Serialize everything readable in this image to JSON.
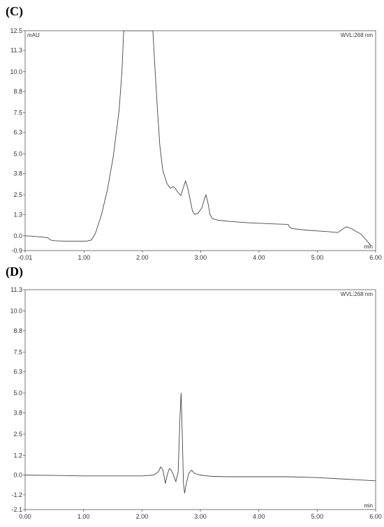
{
  "chart_data": [
    {
      "panel_label": "(C)",
      "type": "line",
      "ylabel": "mAU",
      "xlabel": "min",
      "annotation": "WVL:268 nm",
      "xlim": [
        -0.01,
        6.0
      ],
      "ylim": [
        -0.9,
        12.5
      ],
      "xticks": [
        "-0.01",
        "1.00",
        "2.00",
        "3.00",
        "4.00",
        "5.00",
        "6.00"
      ],
      "xtick_values": [
        -0.01,
        1.0,
        2.0,
        3.0,
        4.0,
        5.0,
        6.0
      ],
      "yticks": [
        "12.5",
        "11.3",
        "10.0",
        "8.8",
        "7.5",
        "6.3",
        "5.0",
        "3.8",
        "2.5",
        "1.3",
        "0.0",
        "-0.9"
      ],
      "ytick_values": [
        12.5,
        11.3,
        10.0,
        8.8,
        7.5,
        6.3,
        5.0,
        3.8,
        2.5,
        1.3,
        0.0,
        -0.9
      ],
      "series": [
        {
          "x": [
            -0.01,
            0.1,
            0.3,
            0.38,
            0.42,
            0.5,
            0.7,
            0.9,
            1.05,
            1.13,
            1.2,
            1.3,
            1.4,
            1.5,
            1.6,
            1.65,
            1.68,
            1.72,
            2.15,
            2.18,
            2.22,
            2.26,
            2.3,
            2.35,
            2.42,
            2.48,
            2.53,
            2.56,
            2.6,
            2.66,
            2.7,
            2.74,
            2.78,
            2.82,
            2.86,
            2.9,
            2.96,
            3.02,
            3.06,
            3.09,
            3.12,
            3.16,
            3.2,
            3.3,
            3.5,
            3.8,
            4.1,
            4.3,
            4.5,
            4.52,
            4.56,
            4.8,
            5.0,
            5.2,
            5.35,
            5.45,
            5.5,
            5.58,
            5.65,
            5.75,
            5.85,
            5.92
          ],
          "y": [
            0.0,
            -0.02,
            -0.08,
            -0.12,
            -0.25,
            -0.3,
            -0.33,
            -0.33,
            -0.32,
            -0.25,
            0.2,
            1.3,
            2.8,
            4.8,
            7.6,
            10.0,
            12.5,
            12.5,
            12.5,
            12.5,
            10.0,
            7.6,
            5.5,
            4.0,
            3.2,
            2.9,
            3.0,
            2.9,
            2.7,
            2.45,
            2.9,
            3.35,
            2.9,
            2.2,
            1.5,
            1.3,
            1.4,
            1.7,
            2.2,
            2.5,
            2.1,
            1.3,
            1.05,
            0.95,
            0.88,
            0.8,
            0.75,
            0.72,
            0.7,
            0.55,
            0.45,
            0.35,
            0.3,
            0.25,
            0.2,
            0.45,
            0.55,
            0.45,
            0.3,
            0.1,
            -0.3,
            -0.6
          ]
        }
      ]
    },
    {
      "panel_label": "(D)",
      "type": "line",
      "ylabel": "",
      "xlabel": "min",
      "annotation": "WVL:268 nm",
      "xlim": [
        0.0,
        6.0
      ],
      "ylim": [
        -2.1,
        11.3
      ],
      "xticks": [
        "0.00",
        "1.00",
        "2.00",
        "3.00",
        "4.00",
        "5.00",
        "6.00"
      ],
      "xtick_values": [
        0.0,
        1.0,
        2.0,
        3.0,
        4.0,
        5.0,
        6.0
      ],
      "yticks": [
        "11.3",
        "10.0",
        "8.8",
        "7.5",
        "6.3",
        "5.0",
        "3.8",
        "2.5",
        "1.2",
        "0.0",
        "-1.2",
        "-2.1"
      ],
      "ytick_values": [
        11.3,
        10.0,
        8.8,
        7.5,
        6.3,
        5.0,
        3.8,
        2.5,
        1.2,
        0.0,
        -1.2,
        -2.1
      ],
      "series": [
        {
          "x": [
            0.0,
            0.5,
            1.0,
            1.5,
            2.0,
            2.2,
            2.28,
            2.32,
            2.36,
            2.4,
            2.44,
            2.47,
            2.5,
            2.54,
            2.58,
            2.62,
            2.65,
            2.67,
            2.69,
            2.71,
            2.73,
            2.76,
            2.8,
            2.85,
            2.9,
            3.0,
            3.2,
            3.5,
            4.0,
            4.5,
            5.0,
            5.5,
            6.0
          ],
          "y": [
            0.0,
            -0.02,
            -0.05,
            -0.05,
            -0.05,
            0.0,
            0.2,
            0.5,
            0.3,
            -0.5,
            0.1,
            0.4,
            0.3,
            0.0,
            -0.4,
            0.2,
            3.5,
            5.0,
            2.5,
            -0.5,
            -1.1,
            -0.5,
            0.1,
            0.3,
            0.1,
            0.0,
            -0.08,
            -0.1,
            -0.1,
            -0.1,
            -0.15,
            -0.25,
            -0.35
          ]
        }
      ]
    }
  ]
}
